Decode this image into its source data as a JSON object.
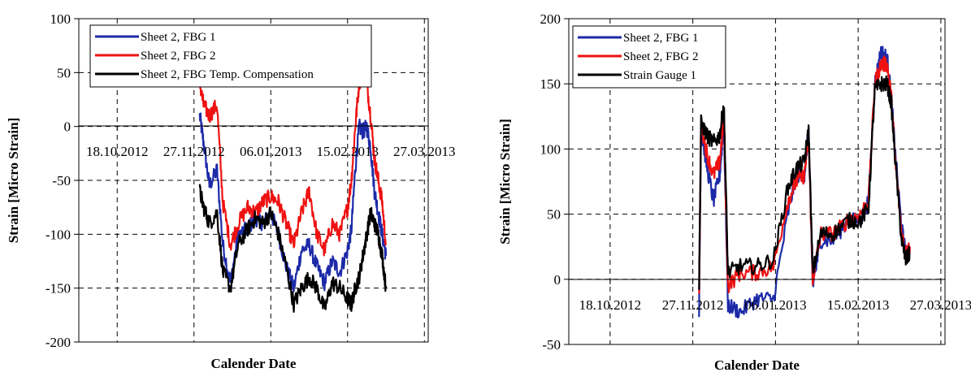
{
  "chart_data": [
    {
      "type": "line",
      "title": "",
      "xlabel": "Calender Date",
      "ylabel": "Strain [Micro Strain]",
      "ylim": [
        -200,
        100
      ],
      "yticks": [
        "100",
        "50",
        "0",
        "-50",
        "-100",
        "-150",
        "-200"
      ],
      "xticks": [
        "18.10.2012",
        "27.11.2012",
        "06.01.2013",
        "15.02.2013",
        "27.03.2013"
      ],
      "xlim": [
        "2012-09-28",
        "2013-03-29"
      ],
      "grid": "dashed, both axes",
      "legend": "top-left",
      "series": [
        {
          "name": "Sheet 2, FBG 1",
          "color": "#1c2aa8",
          "x": [
            "2012-11-30",
            "2012-12-02",
            "2012-12-05",
            "2012-12-09",
            "2012-12-12",
            "2012-12-16",
            "2012-12-20",
            "2012-12-25",
            "2012-12-29",
            "2013-01-02",
            "2013-01-06",
            "2013-01-10",
            "2013-01-14",
            "2013-01-18",
            "2013-01-22",
            "2013-01-26",
            "2013-01-30",
            "2013-02-03",
            "2013-02-07",
            "2013-02-11",
            "2013-02-15",
            "2013-02-17",
            "2013-02-19",
            "2013-02-21",
            "2013-02-23",
            "2013-02-25",
            "2013-02-27",
            "2013-03-01",
            "2013-03-03",
            "2013-03-05",
            "2013-03-07"
          ],
          "values": [
            10,
            -15,
            -55,
            -40,
            -110,
            -145,
            -100,
            -95,
            -85,
            -90,
            -80,
            -100,
            -130,
            -150,
            -115,
            -110,
            -130,
            -145,
            -125,
            -135,
            -115,
            -95,
            -40,
            0,
            -5,
            0,
            -20,
            -60,
            -80,
            -100,
            -120
          ]
        },
        {
          "name": "Sheet 2, FBG 2",
          "color": "#ee1111",
          "x": [
            "2012-11-30",
            "2012-12-02",
            "2012-12-05",
            "2012-12-09",
            "2012-12-12",
            "2012-12-16",
            "2012-12-20",
            "2012-12-25",
            "2012-12-29",
            "2013-01-02",
            "2013-01-06",
            "2013-01-10",
            "2013-01-14",
            "2013-01-18",
            "2013-01-22",
            "2013-01-26",
            "2013-01-30",
            "2013-02-03",
            "2013-02-07",
            "2013-02-11",
            "2013-02-15",
            "2013-02-17",
            "2013-02-19",
            "2013-02-21",
            "2013-02-23",
            "2013-02-25",
            "2013-02-27",
            "2013-03-01",
            "2013-03-03",
            "2013-03-05",
            "2013-03-07"
          ],
          "values": [
            40,
            20,
            10,
            20,
            -70,
            -110,
            -90,
            -75,
            -80,
            -70,
            -65,
            -70,
            -90,
            -110,
            -80,
            -60,
            -100,
            -115,
            -90,
            -100,
            -75,
            -50,
            0,
            40,
            50,
            40,
            10,
            -30,
            -50,
            -70,
            -110
          ]
        },
        {
          "name": "Sheet 2, FBG Temp. Compensation",
          "color": "#000000",
          "x": [
            "2012-11-30",
            "2012-12-02",
            "2012-12-05",
            "2012-12-09",
            "2012-12-12",
            "2012-12-16",
            "2012-12-20",
            "2012-12-25",
            "2012-12-29",
            "2013-01-02",
            "2013-01-06",
            "2013-01-10",
            "2013-01-14",
            "2013-01-18",
            "2013-01-22",
            "2013-01-26",
            "2013-01-30",
            "2013-02-03",
            "2013-02-07",
            "2013-02-11",
            "2013-02-15",
            "2013-02-17",
            "2013-02-19",
            "2013-02-21",
            "2013-02-23",
            "2013-02-25",
            "2013-02-27",
            "2013-03-01",
            "2013-03-03",
            "2013-03-05",
            "2013-03-07"
          ],
          "values": [
            -60,
            -75,
            -90,
            -80,
            -135,
            -150,
            -110,
            -95,
            -85,
            -90,
            -80,
            -100,
            -130,
            -165,
            -150,
            -140,
            -150,
            -170,
            -145,
            -150,
            -160,
            -165,
            -150,
            -140,
            -120,
            -100,
            -80,
            -90,
            -100,
            -120,
            -150
          ]
        }
      ]
    },
    {
      "type": "line",
      "title": "",
      "xlabel": "Calender Date",
      "ylabel": "Strain [Micro Strain]",
      "ylim": [
        -50,
        200
      ],
      "yticks": [
        "200",
        "150",
        "100",
        "50",
        "0",
        "-50"
      ],
      "xticks": [
        "18.10.2012",
        "27.11.2012",
        "06.01.2013",
        "15.02.2013",
        "27.03.2013"
      ],
      "xlim": [
        "2012-09-28",
        "2013-03-29"
      ],
      "grid": "dashed, both axes",
      "legend": "top-left",
      "series": [
        {
          "name": "Sheet 2, FBG 1",
          "color": "#1c2aa8",
          "x": [
            "2012-11-30",
            "2012-12-01",
            "2012-12-04",
            "2012-12-07",
            "2012-12-10",
            "2012-12-12",
            "2012-12-14",
            "2012-12-20",
            "2012-12-28",
            "2013-01-05",
            "2013-01-12",
            "2013-01-16",
            "2013-01-20",
            "2013-01-22",
            "2013-01-24",
            "2013-01-28",
            "2013-02-03",
            "2013-02-10",
            "2013-02-16",
            "2013-02-20",
            "2013-02-23",
            "2013-02-26",
            "2013-03-01",
            "2013-03-03",
            "2013-03-05",
            "2013-03-08",
            "2013-03-10",
            "2013-03-12"
          ],
          "values": [
            -25,
            115,
            85,
            60,
            80,
            120,
            -20,
            -25,
            -15,
            -15,
            50,
            80,
            80,
            115,
            -5,
            30,
            30,
            45,
            45,
            60,
            150,
            175,
            170,
            140,
            95,
            40,
            20,
            20
          ]
        },
        {
          "name": "Sheet 2, FBG 2",
          "color": "#ee1111",
          "x": [
            "2012-11-30",
            "2012-12-01",
            "2012-12-04",
            "2012-12-07",
            "2012-12-10",
            "2012-12-12",
            "2012-12-14",
            "2012-12-20",
            "2012-12-28",
            "2013-01-05",
            "2013-01-12",
            "2013-01-16",
            "2013-01-20",
            "2013-01-22",
            "2013-01-24",
            "2013-01-28",
            "2013-02-03",
            "2013-02-10",
            "2013-02-16",
            "2013-02-20",
            "2013-02-23",
            "2013-02-26",
            "2013-03-01",
            "2013-03-03",
            "2013-03-05",
            "2013-03-08",
            "2013-03-10",
            "2013-03-12"
          ],
          "values": [
            -15,
            120,
            95,
            80,
            90,
            125,
            -5,
            5,
            5,
            10,
            60,
            75,
            80,
            110,
            0,
            35,
            35,
            45,
            50,
            60,
            150,
            165,
            165,
            140,
            90,
            35,
            20,
            25
          ]
        },
        {
          "name": "Strain Gauge 1",
          "color": "#000000",
          "x": [
            "2012-11-30",
            "2012-12-01",
            "2012-12-04",
            "2012-12-07",
            "2012-12-10",
            "2012-12-12",
            "2012-12-14",
            "2012-12-20",
            "2012-12-28",
            "2013-01-05",
            "2013-01-12",
            "2013-01-16",
            "2013-01-20",
            "2013-01-22",
            "2013-01-24",
            "2013-01-28",
            "2013-02-03",
            "2013-02-10",
            "2013-02-16",
            "2013-02-20",
            "2013-02-23",
            "2013-02-26",
            "2013-03-01",
            "2013-03-03",
            "2013-03-05",
            "2013-03-08",
            "2013-03-10",
            "2013-03-12"
          ],
          "values": [
            -5,
            120,
            110,
            105,
            110,
            135,
            5,
            10,
            10,
            15,
            70,
            85,
            90,
            115,
            5,
            35,
            35,
            45,
            45,
            55,
            145,
            150,
            150,
            135,
            90,
            30,
            15,
            20
          ]
        }
      ]
    }
  ]
}
